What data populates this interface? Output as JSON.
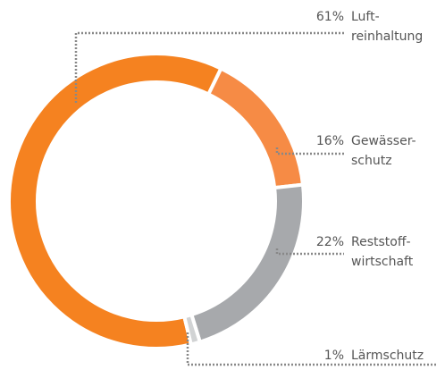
{
  "chart_data": {
    "type": "donut",
    "categories": [
      [
        "Luft-",
        "reinhaltung"
      ],
      [
        "Gewässer-",
        "schutz"
      ],
      [
        "Reststoff-",
        "wirtschaft"
      ],
      [
        "Lärmschutz"
      ]
    ],
    "values": [
      61,
      16,
      22,
      1
    ],
    "value_labels": [
      "61%",
      "16%",
      "22%",
      "1%"
    ],
    "colors": [
      "#f58220",
      "#f68b45",
      "#a7a9ac",
      "#d1d3d4"
    ]
  }
}
